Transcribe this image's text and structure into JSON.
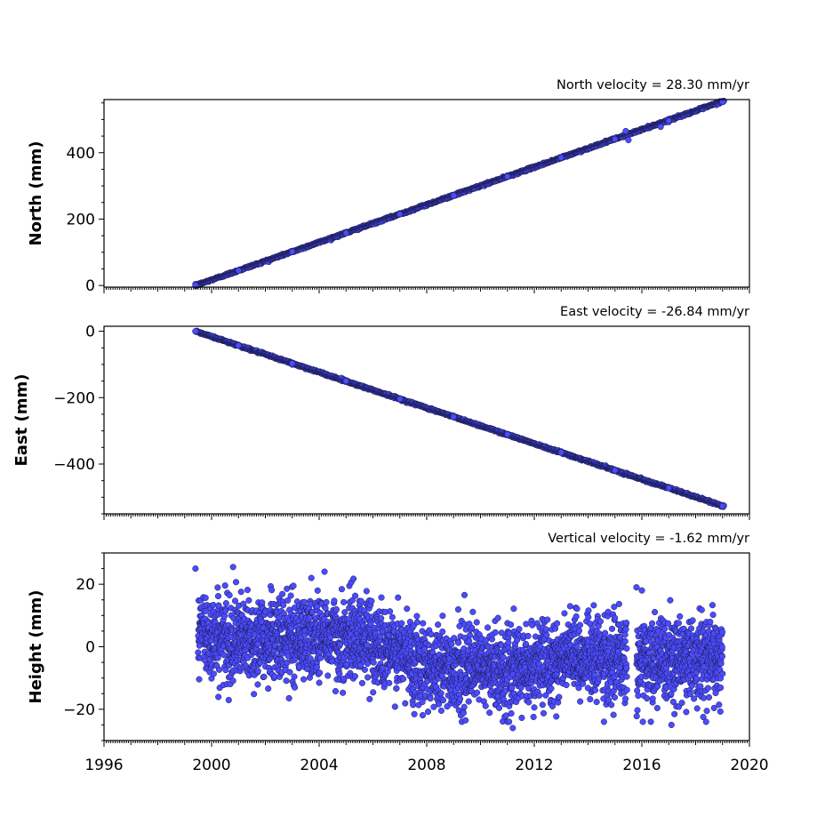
{
  "chart_data": [
    {
      "type": "scatter",
      "title": "North velocity = 28.30 mm/yr",
      "xlabel": "",
      "ylabel": "North (mm)",
      "xlim": [
        1996,
        2020
      ],
      "ylim": [
        -5,
        560
      ],
      "yticks": [
        0,
        200,
        400
      ],
      "ytick_labels": [
        "0",
        "200",
        "400"
      ],
      "xticks": [
        1996,
        2000,
        2004,
        2008,
        2012,
        2016,
        2020
      ],
      "xtick_labels": [],
      "grid": false,
      "marker_color": "#4b4bff",
      "edge_color": "#1a1a4a",
      "series": [
        {
          "values_x": [
            1999.4,
            2001.0,
            2003.0,
            2005.0,
            2007.0,
            2009.0,
            2011.0,
            2013.0,
            2015.0,
            2015.4,
            2015.5,
            2016.7,
            2017.0,
            2019.0
          ],
          "values_y": [
            0,
            45,
            102,
            158,
            215,
            271,
            328,
            385,
            441,
            465,
            438,
            478,
            496,
            553
          ]
        }
      ],
      "start_x": 1999.4,
      "end_x": 2019.05,
      "slope_mm_per_yr": 28.3
    },
    {
      "type": "scatter",
      "title": "East velocity = -26.84 mm/yr",
      "xlabel": "",
      "ylabel": "East (mm)",
      "xlim": [
        1996,
        2020
      ],
      "ylim": [
        -550,
        15
      ],
      "yticks": [
        0,
        -200,
        -400
      ],
      "ytick_labels": [
        "0",
        "−200",
        "−400"
      ],
      "xticks": [
        1996,
        2000,
        2004,
        2008,
        2012,
        2016,
        2020
      ],
      "xtick_labels": [],
      "grid": false,
      "marker_color": "#4b4bff",
      "edge_color": "#1a1a4a",
      "series": [
        {
          "values_x": [
            1999.4,
            2001.0,
            2003.0,
            2005.0,
            2007.0,
            2009.0,
            2011.0,
            2013.0,
            2015.0,
            2017.0,
            2019.0
          ],
          "values_y": [
            0,
            -43,
            -97,
            -150,
            -204,
            -258,
            -311,
            -365,
            -419,
            -472,
            -527
          ]
        }
      ],
      "start_x": 1999.4,
      "end_x": 2019.05,
      "slope_mm_per_yr": -26.84
    },
    {
      "type": "scatter",
      "title": "Vertical velocity = -1.62 mm/yr",
      "xlabel": "",
      "ylabel": "Height (mm)",
      "xlim": [
        1996,
        2020
      ],
      "ylim": [
        -30,
        30
      ],
      "yticks": [
        20,
        0,
        -20
      ],
      "ytick_labels": [
        "20",
        "0",
        "−20"
      ],
      "xticks": [
        1996,
        2000,
        2004,
        2008,
        2012,
        2016,
        2020
      ],
      "xtick_labels": [
        "1996",
        "2000",
        "2004",
        "2008",
        "2012",
        "2016",
        "2020"
      ],
      "grid": false,
      "marker_color": "#4b4bff",
      "edge_color": "#1a1a4a",
      "series": [
        {
          "values_x": [
            1999.5,
            2000.0,
            2000.8,
            2001.5,
            2002.5,
            2003.5,
            2004.2,
            2005.0,
            2005.5,
            2006.5,
            2007.5,
            2008.5,
            2009.5,
            2010.5,
            2011.0,
            2012.0,
            2013.0,
            2014.0,
            2014.5,
            2015.4,
            2015.8,
            2016.5,
            2017.5,
            2018.5,
            2019.0
          ],
          "values_y": [
            5,
            3,
            2,
            2,
            3,
            3,
            4,
            2,
            4,
            -1,
            -4,
            -7,
            -7,
            -7,
            -8,
            -6,
            -4,
            -3,
            -4,
            -5,
            -4,
            -5,
            -4,
            -3,
            -4
          ]
        }
      ],
      "outliers_x": [
        1999.4,
        2000.8,
        2004.2,
        2015.8,
        2016.0,
        2011.2,
        2017.1
      ],
      "outliers_y": [
        25,
        25.5,
        24,
        19,
        18,
        -26,
        -25
      ],
      "data_gap_x": [
        2015.45,
        2015.8
      ]
    }
  ]
}
